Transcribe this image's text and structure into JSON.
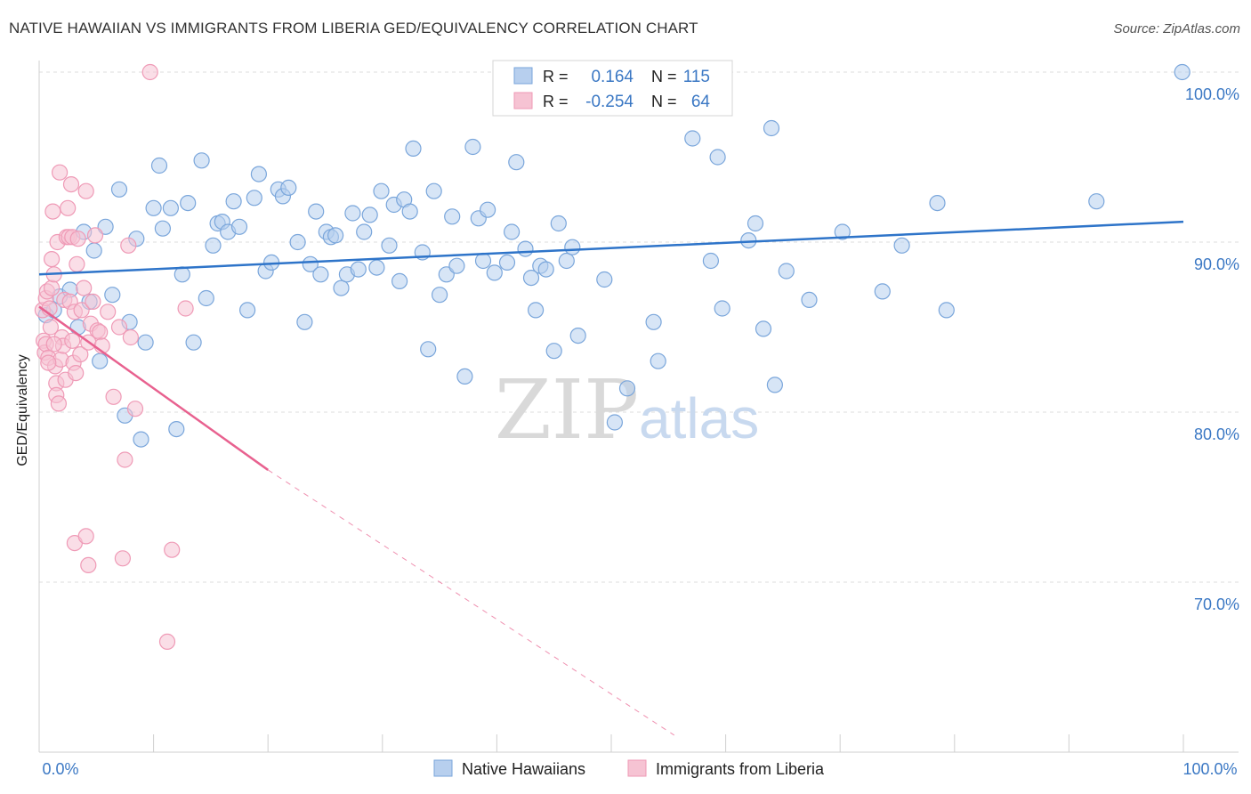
{
  "header": {
    "title": "NATIVE HAWAIIAN VS IMMIGRANTS FROM LIBERIA GED/EQUIVALENCY CORRELATION CHART",
    "source": "Source: ZipAtlas.com"
  },
  "watermark": {
    "zip": "ZIP",
    "atlas": "atlas"
  },
  "colors": {
    "blue_fill": "#b7cfee",
    "blue_stroke": "#7aa6db",
    "blue_line": "#2e74c9",
    "pink_fill": "#f6c3d3",
    "pink_stroke": "#ef9ab6",
    "pink_line": "#e8618f",
    "axis_text": "#3b78c4",
    "grid": "#dcdcdc"
  },
  "stats": [
    {
      "r_label": "R =",
      "r_value": "0.164",
      "n_label": "N =",
      "n_value": "115"
    },
    {
      "r_label": "R =",
      "r_value": "-0.254",
      "n_label": "N =",
      "n_value": "64"
    }
  ],
  "chart_data": {
    "type": "scatter",
    "title": "NATIVE HAWAIIAN VS IMMIGRANTS FROM LIBERIA GED/EQUIVALENCY CORRELATION CHART",
    "xlabel": "",
    "ylabel": "GED/Equivalency",
    "xlim": [
      0,
      100
    ],
    "ylim": [
      61,
      100.5
    ],
    "x_tick_labels": [
      "0.0%",
      "100.0%"
    ],
    "y_ticks": [
      70,
      80,
      90,
      100
    ],
    "y_tick_labels": [
      "70.0%",
      "80.0%",
      "90.0%",
      "100.0%"
    ],
    "grid": true,
    "legend_position": "bottom-center",
    "series": [
      {
        "name": "Native Hawaiians",
        "color": "#7aa6db",
        "trend": {
          "x0": 0,
          "y0": 88.1,
          "x1": 100,
          "y1": 91.2,
          "dashed_from_x": null
        },
        "points": [
          [
            0.6,
            85.7
          ],
          [
            1.3,
            86.0
          ],
          [
            1.8,
            86.8
          ],
          [
            2.7,
            87.2
          ],
          [
            3.4,
            85.0
          ],
          [
            3.9,
            90.6
          ],
          [
            4.4,
            86.5
          ],
          [
            4.8,
            89.5
          ],
          [
            5.3,
            83.0
          ],
          [
            5.8,
            90.9
          ],
          [
            6.4,
            86.9
          ],
          [
            7.0,
            93.1
          ],
          [
            7.5,
            79.8
          ],
          [
            7.9,
            85.3
          ],
          [
            8.5,
            90.2
          ],
          [
            8.9,
            78.4
          ],
          [
            9.3,
            84.1
          ],
          [
            10.0,
            92.0
          ],
          [
            10.5,
            94.5
          ],
          [
            10.8,
            90.8
          ],
          [
            11.5,
            92.0
          ],
          [
            12.0,
            79.0
          ],
          [
            12.5,
            88.1
          ],
          [
            13.0,
            92.3
          ],
          [
            13.5,
            84.1
          ],
          [
            14.2,
            94.8
          ],
          [
            14.6,
            86.7
          ],
          [
            15.2,
            89.8
          ],
          [
            15.6,
            91.1
          ],
          [
            16.0,
            91.2
          ],
          [
            16.5,
            90.6
          ],
          [
            17.0,
            92.4
          ],
          [
            17.5,
            90.9
          ],
          [
            18.2,
            86.0
          ],
          [
            18.8,
            92.6
          ],
          [
            19.2,
            94.0
          ],
          [
            19.8,
            88.3
          ],
          [
            20.3,
            88.8
          ],
          [
            20.9,
            93.1
          ],
          [
            21.3,
            92.7
          ],
          [
            21.8,
            93.2
          ],
          [
            22.6,
            90.0
          ],
          [
            23.2,
            85.3
          ],
          [
            23.7,
            88.7
          ],
          [
            24.2,
            91.8
          ],
          [
            24.6,
            88.1
          ],
          [
            25.1,
            90.6
          ],
          [
            25.5,
            90.3
          ],
          [
            25.9,
            90.4
          ],
          [
            26.4,
            87.3
          ],
          [
            26.9,
            88.1
          ],
          [
            27.4,
            91.7
          ],
          [
            27.9,
            88.4
          ],
          [
            28.4,
            90.6
          ],
          [
            28.9,
            91.6
          ],
          [
            29.5,
            88.5
          ],
          [
            29.9,
            93.0
          ],
          [
            30.6,
            89.8
          ],
          [
            31.0,
            92.2
          ],
          [
            31.5,
            87.7
          ],
          [
            31.9,
            92.5
          ],
          [
            32.4,
            91.8
          ],
          [
            32.7,
            95.5
          ],
          [
            33.5,
            89.4
          ],
          [
            34.0,
            83.7
          ],
          [
            34.5,
            93.0
          ],
          [
            35.0,
            86.9
          ],
          [
            35.6,
            88.1
          ],
          [
            36.1,
            91.5
          ],
          [
            36.5,
            88.6
          ],
          [
            37.2,
            82.1
          ],
          [
            37.9,
            95.6
          ],
          [
            38.4,
            91.4
          ],
          [
            38.8,
            88.9
          ],
          [
            39.2,
            91.9
          ],
          [
            39.8,
            88.2
          ],
          [
            40.9,
            88.8
          ],
          [
            41.3,
            90.6
          ],
          [
            41.7,
            94.7
          ],
          [
            42.5,
            89.6
          ],
          [
            43.0,
            87.9
          ],
          [
            43.4,
            86.0
          ],
          [
            43.8,
            88.6
          ],
          [
            44.3,
            88.4
          ],
          [
            45.0,
            83.6
          ],
          [
            45.4,
            91.1
          ],
          [
            46.1,
            88.9
          ],
          [
            46.6,
            89.7
          ],
          [
            47.1,
            84.5
          ],
          [
            49.4,
            87.8
          ],
          [
            50.3,
            79.4
          ],
          [
            51.4,
            81.4
          ],
          [
            53.7,
            85.3
          ],
          [
            54.1,
            83.0
          ],
          [
            57.1,
            96.1
          ],
          [
            58.7,
            88.9
          ],
          [
            59.3,
            95.0
          ],
          [
            59.7,
            86.1
          ],
          [
            62.0,
            90.1
          ],
          [
            62.6,
            91.1
          ],
          [
            63.3,
            84.9
          ],
          [
            64.0,
            96.7
          ],
          [
            64.3,
            81.6
          ],
          [
            65.3,
            88.3
          ],
          [
            67.3,
            86.6
          ],
          [
            70.2,
            90.6
          ],
          [
            73.7,
            87.1
          ],
          [
            75.4,
            89.8
          ],
          [
            78.5,
            92.3
          ],
          [
            79.3,
            86.0
          ],
          [
            92.4,
            92.4
          ],
          [
            59.2,
            100.0
          ],
          [
            99.9,
            100.0
          ]
        ]
      },
      {
        "name": "Immigrants from Liberia",
        "color": "#ef9ab6",
        "trend": {
          "x0": 0,
          "y0": 86.2,
          "x1": 20,
          "y1": 76.6,
          "dashed_from_x": 20,
          "dashed_to_x": 55.5,
          "dashed_to_y": 61.0
        },
        "points": [
          [
            0.3,
            86.0
          ],
          [
            0.4,
            84.2
          ],
          [
            0.5,
            83.5
          ],
          [
            0.6,
            84.0
          ],
          [
            0.6,
            86.7
          ],
          [
            0.7,
            87.1
          ],
          [
            0.8,
            83.2
          ],
          [
            0.9,
            86.1
          ],
          [
            1.0,
            85.0
          ],
          [
            1.1,
            89.0
          ],
          [
            1.1,
            87.3
          ],
          [
            1.2,
            91.8
          ],
          [
            1.3,
            88.1
          ],
          [
            1.4,
            82.7
          ],
          [
            1.5,
            81.7
          ],
          [
            1.5,
            81.0
          ],
          [
            1.6,
            90.0
          ],
          [
            1.7,
            80.5
          ],
          [
            1.8,
            94.1
          ],
          [
            1.9,
            83.1
          ],
          [
            2.0,
            84.4
          ],
          [
            2.1,
            83.9
          ],
          [
            2.2,
            86.6
          ],
          [
            2.3,
            81.9
          ],
          [
            2.4,
            90.3
          ],
          [
            2.5,
            92.0
          ],
          [
            2.6,
            90.3
          ],
          [
            2.7,
            86.5
          ],
          [
            2.8,
            93.4
          ],
          [
            2.9,
            90.3
          ],
          [
            3.0,
            82.9
          ],
          [
            3.1,
            85.9
          ],
          [
            3.2,
            82.3
          ],
          [
            3.3,
            88.7
          ],
          [
            3.4,
            90.2
          ],
          [
            3.6,
            83.4
          ],
          [
            3.7,
            86.0
          ],
          [
            3.9,
            87.3
          ],
          [
            4.1,
            93.0
          ],
          [
            4.3,
            84.1
          ],
          [
            4.5,
            85.2
          ],
          [
            4.7,
            86.5
          ],
          [
            4.9,
            90.4
          ],
          [
            5.1,
            84.8
          ],
          [
            5.3,
            84.7
          ],
          [
            5.5,
            83.9
          ],
          [
            6.0,
            85.9
          ],
          [
            6.5,
            80.9
          ],
          [
            7.0,
            85.0
          ],
          [
            7.5,
            77.2
          ],
          [
            7.8,
            89.8
          ],
          [
            8.0,
            84.4
          ],
          [
            8.4,
            80.2
          ],
          [
            9.7,
            100.0
          ],
          [
            12.8,
            86.1
          ],
          [
            3.1,
            72.3
          ],
          [
            4.1,
            72.7
          ],
          [
            4.3,
            71.0
          ],
          [
            7.3,
            71.4
          ],
          [
            11.6,
            71.9
          ],
          [
            11.2,
            66.5
          ],
          [
            2.9,
            84.2
          ],
          [
            1.3,
            84.0
          ],
          [
            0.8,
            82.9
          ]
        ]
      }
    ]
  },
  "legend": {
    "items": [
      {
        "label": "Native Hawaiians"
      },
      {
        "label": "Immigrants from Liberia"
      }
    ]
  }
}
